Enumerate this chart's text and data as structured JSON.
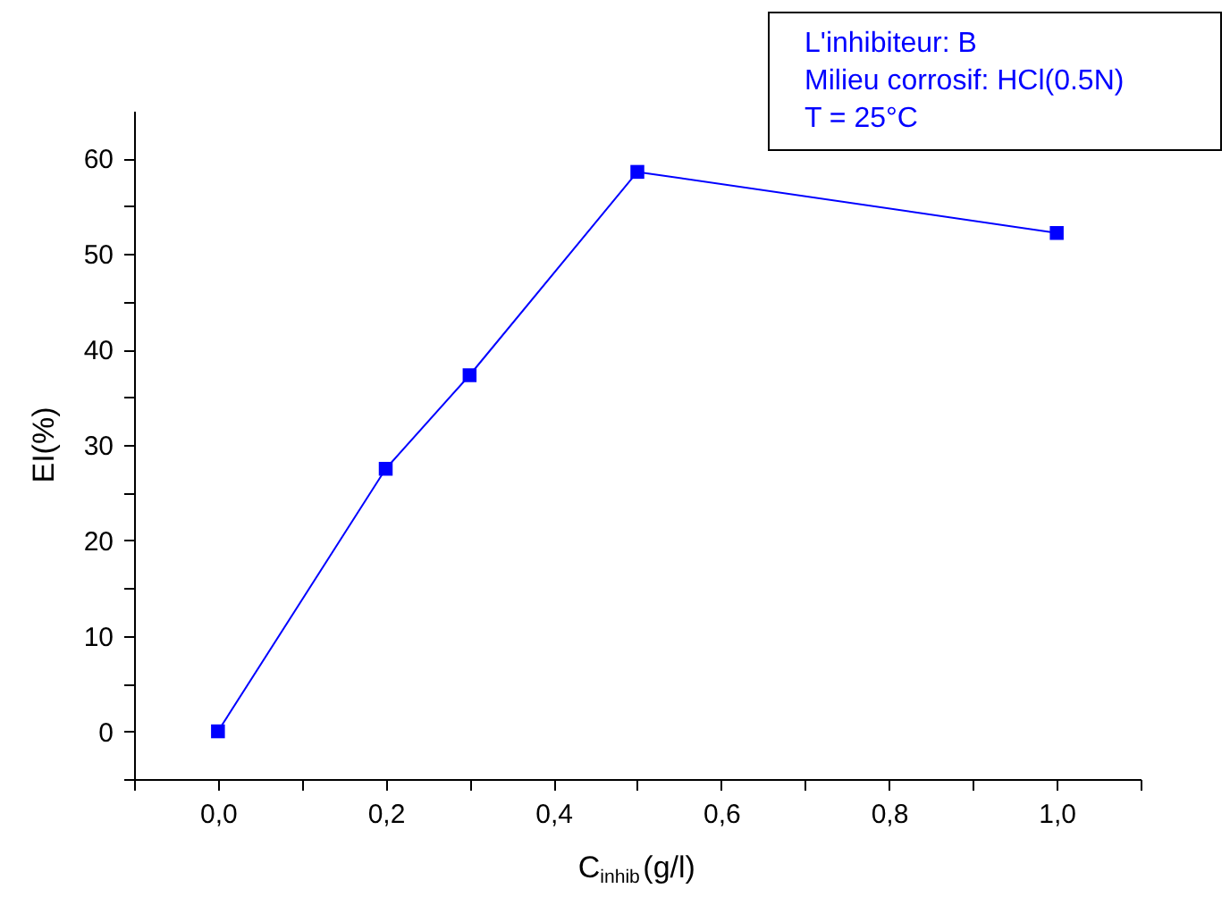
{
  "chart_data": {
    "type": "line",
    "xlabel": "C$_{inhib}$(g/l)",
    "ylabel": "EI(%)",
    "x": [
      0.0,
      0.2,
      0.3,
      0.5,
      1.0
    ],
    "series": [
      {
        "color": "#0000ff",
        "values": [
          0,
          27.5,
          37.3,
          58.6,
          52.2
        ]
      }
    ],
    "marker": "square",
    "line_style": "solid",
    "legend": false,
    "grid": false,
    "xlim": [
      -0.1,
      1.1
    ],
    "xticks": [
      {
        "value": -0.1,
        "label": null
      },
      {
        "value": 0.0,
        "label": "0,0"
      },
      {
        "value": 0.1,
        "label": null
      },
      {
        "value": 0.2,
        "label": "0,2"
      },
      {
        "value": 0.3,
        "label": null
      },
      {
        "value": 0.4,
        "label": "0,4"
      },
      {
        "value": 0.5,
        "label": null
      },
      {
        "value": 0.6,
        "label": "0,6"
      },
      {
        "value": 0.7,
        "label": null
      },
      {
        "value": 0.8,
        "label": "0,8"
      },
      {
        "value": 0.9,
        "label": null
      },
      {
        "value": 1.0,
        "label": "1,0"
      },
      {
        "value": 1.1,
        "label": null
      }
    ],
    "ylim": [
      -5,
      65
    ],
    "yticks": [
      {
        "value": -5,
        "label": null
      },
      0,
      {
        "value": 5,
        "label": null
      },
      10,
      {
        "value": 15,
        "label": null
      },
      20,
      {
        "value": 25,
        "label": null
      },
      30,
      {
        "value": 35,
        "label": null
      },
      40,
      {
        "value": 45,
        "label": null
      },
      50,
      {
        "value": 55,
        "label": null
      },
      60
    ],
    "annotations": [
      "L'inhibiteur: B",
      "Milieu corrosif: HCl(0.5N)",
      "T = 25°C"
    ]
  }
}
